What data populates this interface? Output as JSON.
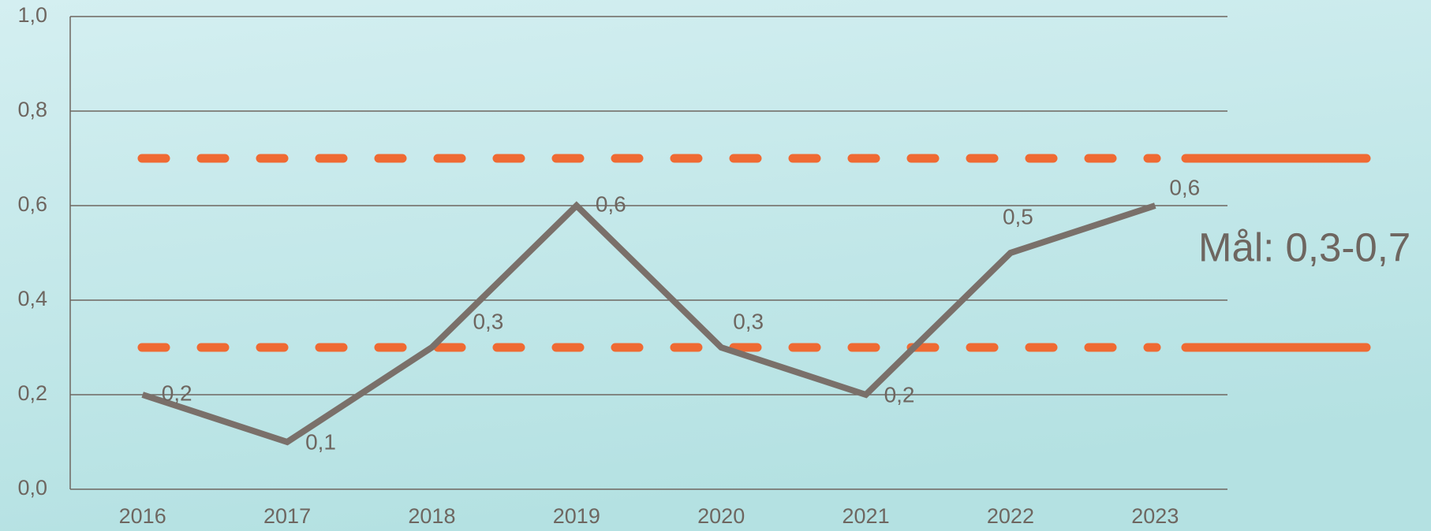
{
  "chart_data": {
    "type": "line",
    "categories": [
      "2016",
      "2017",
      "2018",
      "2019",
      "2020",
      "2021",
      "2022",
      "2023"
    ],
    "series": [
      {
        "color": "#7a706a",
        "values": [
          0.2,
          0.1,
          0.3,
          0.6,
          0.3,
          0.2,
          0.5,
          0.6
        ],
        "value_labels": [
          "0,2",
          "0,1",
          "0,3",
          "0,6",
          "0,3",
          "0,2",
          "0,5",
          "0,6"
        ]
      }
    ],
    "reference_lines": [
      {
        "value": 0.7,
        "color": "#ef6a33"
      },
      {
        "value": 0.3,
        "color": "#ef6a33"
      }
    ],
    "annotation": "Mål: 0,3-0,7",
    "ylim": [
      0,
      1
    ],
    "yticks": [
      {
        "value": 0,
        "label": "0,0"
      },
      {
        "value": 0.2,
        "label": "0,2"
      },
      {
        "value": 0.4,
        "label": "0,4"
      },
      {
        "value": 0.6,
        "label": "0,6"
      },
      {
        "value": 0.8,
        "label": "0,8"
      },
      {
        "value": 1,
        "label": "1,0"
      }
    ],
    "grid": true
  }
}
